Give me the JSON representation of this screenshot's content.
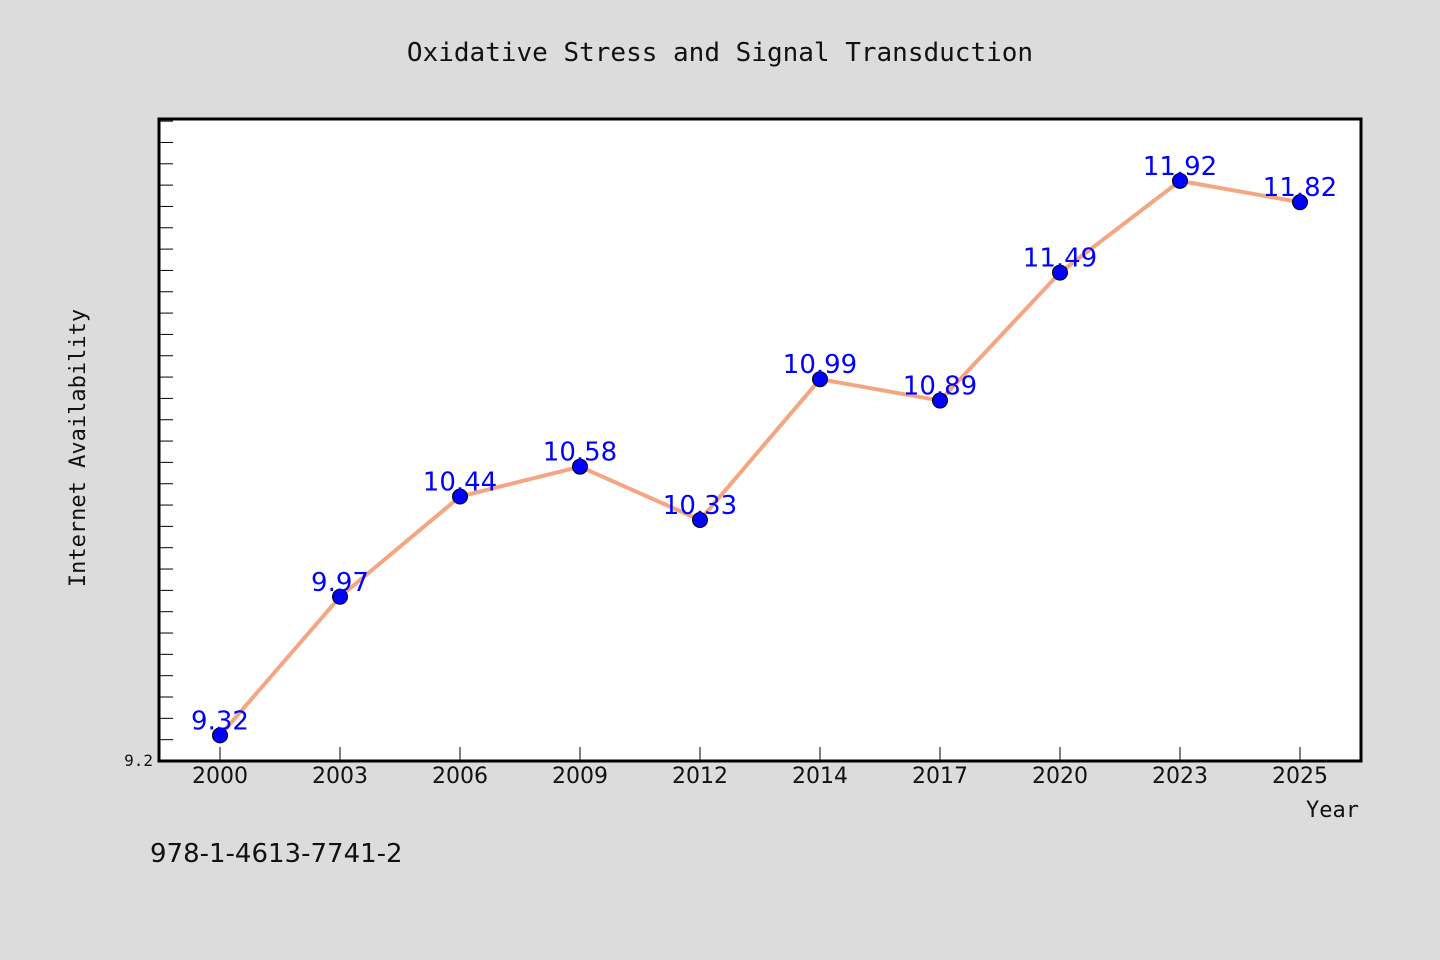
{
  "chart_data": {
    "type": "line",
    "title": "Oxidative Stress and Signal Transduction",
    "xlabel": "Year",
    "ylabel": "Internet Availability",
    "categories": [
      "2000",
      "2003",
      "2006",
      "2009",
      "2012",
      "2014",
      "2017",
      "2020",
      "2023",
      "2025"
    ],
    "series": [
      {
        "values": [
          9.32,
          9.97,
          10.44,
          10.58,
          10.33,
          10.99,
          10.89,
          11.49,
          11.92,
          11.82
        ]
      }
    ],
    "data_labels": [
      "9.32",
      "9.97",
      "10.44",
      "10.58",
      "10.33",
      "10.99",
      "10.89",
      "11.49",
      "11.92",
      "11.82"
    ],
    "y_tick_labels": [
      "9.2"
    ],
    "ylim": [
      9.2,
      12.21
    ],
    "grid": false,
    "colors": {
      "line": "#f4a582",
      "marker": "#0000ff",
      "label": "#0000ff",
      "plot_background": "#ffffff",
      "figure_background": "#dcdcdc"
    }
  },
  "footer": {
    "isbn": "978-1-4613-7741-2"
  }
}
